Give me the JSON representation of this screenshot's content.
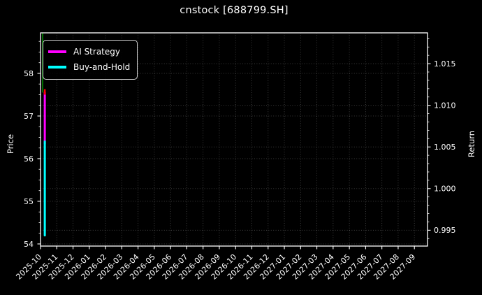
{
  "title": "cnstock [688799.SH]",
  "legend": {
    "items": [
      {
        "label": "AI Strategy",
        "color": "#ff00ff"
      },
      {
        "label": "Buy-and-Hold",
        "color": "#00ffff"
      }
    ]
  },
  "colors": {
    "background": "#000000",
    "foreground": "#ffffff",
    "grid": "#444444",
    "buy_marker": "#008f00",
    "sell_marker": "#ff0000",
    "ai_strategy": "#ff00ff",
    "buy_and_hold": "#00ffff"
  },
  "chart_data": {
    "type": "line",
    "title": "cnstock [688799.SH]",
    "xlabel": "",
    "ylabel_left": "Price",
    "ylabel_right": "Return",
    "grid": true,
    "legend_position": "upper left",
    "left_ylim": [
      53.95,
      58.95
    ],
    "right_ylim": [
      0.9931,
      1.0187
    ],
    "left_yticks": [
      54,
      55,
      56,
      57,
      58
    ],
    "right_yticks": [
      "0.995",
      "1.000",
      "1.005",
      "1.010",
      "1.015"
    ],
    "x_tick_labels": [
      "2025-10",
      "2025-11",
      "2025-12",
      "2026-01",
      "2026-02",
      "2026-03",
      "2026-04",
      "2026-05",
      "2026-06",
      "2026-07",
      "2026-08",
      "2026-09",
      "2026-10",
      "2026-11",
      "2026-12",
      "2027-01",
      "2027-02",
      "2027-03",
      "2027-04",
      "2027-05",
      "2027-06",
      "2027-07",
      "2027-08",
      "2027-09"
    ],
    "note": "All plotted data is compressed at the far-left edge (early October 2025); the x-axis extends with no data through 2027-09, so both series render as vertical spikes.",
    "series": [
      {
        "name": "AI Strategy",
        "color": "#ff00ff",
        "axis": "left",
        "linewidth": 3,
        "points": [
          [
            "2025-10-09",
            57.55
          ],
          [
            "2025-10-09",
            56.35
          ]
        ]
      },
      {
        "name": "Buy-and-Hold",
        "color": "#00ffff",
        "axis": "left",
        "linewidth": 3,
        "points": [
          [
            "2025-10-09",
            56.4
          ],
          [
            "2025-10-09",
            54.2
          ]
        ]
      }
    ],
    "event_markers": [
      {
        "type": "vline",
        "name": "buy-signal",
        "color": "#008f00",
        "date": "2025-10-05",
        "axis": "left",
        "y_from": 58.95,
        "y_to": 57.55,
        "linewidth": 1.6,
        "layer": "below"
      },
      {
        "type": "vline",
        "name": "sell-signal",
        "color": "#ff0000",
        "date": "2025-10-09",
        "axis": "left",
        "y_from": 57.63,
        "y_to": 57.5,
        "linewidth": 2.6,
        "layer": "above"
      }
    ]
  }
}
